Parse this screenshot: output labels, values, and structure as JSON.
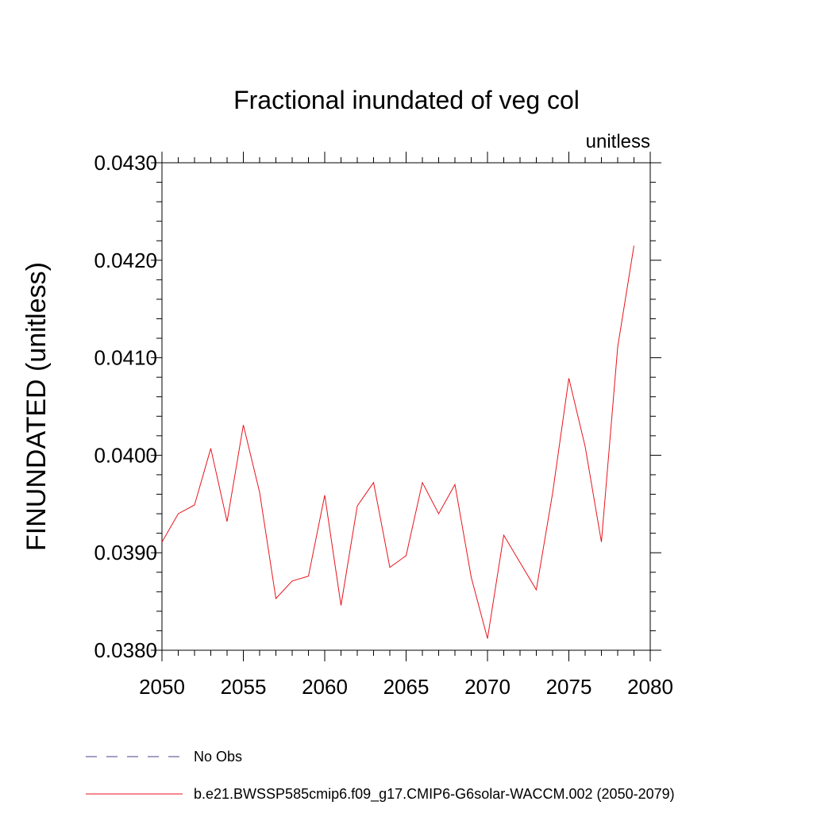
{
  "chart_data": {
    "type": "line",
    "title": "Fractional inundated of veg col",
    "units_label": "unitless",
    "ylabel": "FINUNDATED  (unitless)",
    "xlabel": "",
    "xlim": [
      2050,
      2080
    ],
    "ylim": [
      0.038,
      0.043
    ],
    "x_ticks": [
      2050,
      2055,
      2060,
      2065,
      2070,
      2075,
      2080
    ],
    "x_tick_labels": [
      "2050",
      "2055",
      "2060",
      "2065",
      "2070",
      "2075",
      "2080"
    ],
    "y_ticks": [
      0.038,
      0.039,
      0.04,
      0.041,
      0.042,
      0.043
    ],
    "y_tick_labels": [
      "0.0380",
      "0.0390",
      "0.0400",
      "0.0410",
      "0.0420",
      "0.0430"
    ],
    "grid": false,
    "legend_position": "bottom-left",
    "x": [
      2050,
      2051,
      2052,
      2053,
      2054,
      2055,
      2056,
      2057,
      2058,
      2059,
      2060,
      2061,
      2062,
      2063,
      2064,
      2065,
      2066,
      2067,
      2068,
      2069,
      2070,
      2071,
      2072,
      2073,
      2074,
      2075,
      2076,
      2077,
      2078,
      2079
    ],
    "series": [
      {
        "name": "b.e21.BWSSP585cmip6.f09_g17.CMIP6-G6solar-WACCM.002 (2050-2079)",
        "color": "#e8141c",
        "dash": "solid",
        "values": [
          0.03911,
          0.0394,
          0.03949,
          0.04007,
          0.03932,
          0.04031,
          0.03962,
          0.03853,
          0.03871,
          0.03876,
          0.03959,
          0.03846,
          0.03948,
          0.03972,
          0.03885,
          0.03897,
          0.03972,
          0.0394,
          0.0397,
          0.03875,
          0.03812,
          0.03918,
          0.0389,
          0.03862,
          0.03961,
          0.04079,
          0.04009,
          0.03911,
          0.04111,
          0.04215
        ]
      }
    ],
    "legend": [
      {
        "label": "No Obs",
        "color": "#4b3f8a",
        "dash": "dashed"
      },
      {
        "label": "b.e21.BWSSP585cmip6.f09_g17.CMIP6-G6solar-WACCM.002 (2050-2079)",
        "color": "#e8141c",
        "dash": "solid"
      }
    ]
  }
}
